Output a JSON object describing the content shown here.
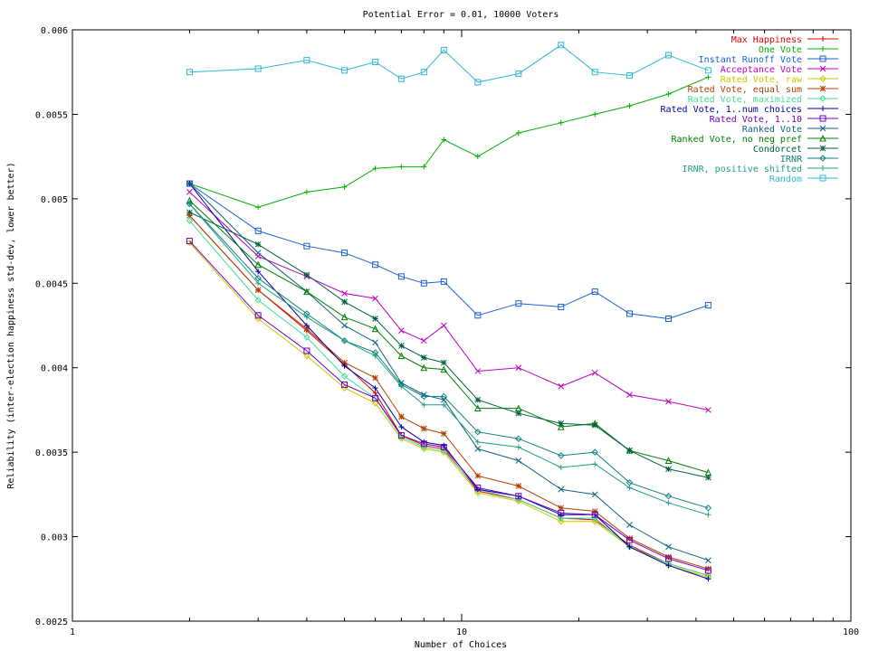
{
  "chart_data": {
    "type": "line",
    "title": "Potential Error = 0.01, 10000 Voters",
    "xlabel": "Number of Choices",
    "ylabel": "Reliability (inter-election happiness std-dev, lower better)",
    "xscale": "log",
    "xlim": [
      1,
      100
    ],
    "ylim": [
      0.0025,
      0.006
    ],
    "xticks": [
      1,
      10,
      100
    ],
    "yticks": [
      "0.0025",
      "0.003",
      "0.0035",
      "0.004",
      "0.0045",
      "0.005",
      "0.0055",
      "0.006"
    ],
    "legend_position": "top-right",
    "grid": false,
    "x": [
      2,
      3,
      4,
      5,
      6,
      7,
      8,
      9,
      11,
      14,
      18,
      22,
      27,
      34,
      43
    ],
    "series": [
      {
        "name": "Max Happiness",
        "color": "#e00000",
        "marker": "plus",
        "values": [
          0.0049,
          0.00446,
          0.00422,
          0.00402,
          0.00385,
          0.0036,
          0.00354,
          0.00352,
          0.00327,
          0.00322,
          0.00311,
          0.0031,
          0.00295,
          0.00284,
          0.00277
        ]
      },
      {
        "name": "One Vote",
        "color": "#00b000",
        "marker": "plus",
        "values": [
          0.00509,
          0.00495,
          0.00504,
          0.00507,
          0.00518,
          0.00519,
          0.00519,
          0.00535,
          0.00525,
          0.00539,
          0.00545,
          0.0055,
          0.00555,
          0.00562,
          0.00572
        ]
      },
      {
        "name": "Instant Runoff Vote",
        "color": "#1a5fd6",
        "marker": "square",
        "values": [
          0.00509,
          0.00481,
          0.00472,
          0.00468,
          0.00461,
          0.00454,
          0.0045,
          0.00451,
          0.00431,
          0.00438,
          0.00436,
          0.00445,
          0.00432,
          0.00429,
          0.00437
        ]
      },
      {
        "name": "Acceptance Vote",
        "color": "#c000c0",
        "marker": "x",
        "values": [
          0.00504,
          0.00466,
          0.00454,
          0.00444,
          0.00441,
          0.00422,
          0.00416,
          0.00425,
          0.00398,
          0.004,
          0.00389,
          0.00397,
          0.00384,
          0.0038,
          0.00375
        ]
      },
      {
        "name": "Rated Vote, raw",
        "color": "#c8c800",
        "marker": "diamond",
        "values": [
          0.00474,
          0.00429,
          0.00407,
          0.00388,
          0.00379,
          0.00358,
          0.00352,
          0.0035,
          0.00326,
          0.00321,
          0.00309,
          0.00309,
          0.00294,
          0.00283,
          0.00276
        ]
      },
      {
        "name": "Rated Vote, equal sum",
        "color": "#b04000",
        "marker": "star",
        "values": [
          0.0049,
          0.00446,
          0.00423,
          0.00403,
          0.00394,
          0.00371,
          0.00364,
          0.00361,
          0.00336,
          0.0033,
          0.00317,
          0.00315,
          0.00299,
          0.00288,
          0.00281
        ]
      },
      {
        "name": "Rated Vote, maximized",
        "color": "#40e090",
        "marker": "diamond",
        "values": [
          0.00487,
          0.0044,
          0.00418,
          0.00395,
          0.00382,
          0.00359,
          0.00353,
          0.00351,
          0.00328,
          0.00322,
          0.00311,
          0.00311,
          0.00294,
          0.00284,
          0.00277
        ]
      },
      {
        "name": "Rated Vote, 1..num choices",
        "color": "#0000a0",
        "marker": "plus",
        "values": [
          0.00509,
          0.00457,
          0.00425,
          0.00401,
          0.00388,
          0.00365,
          0.00356,
          0.00354,
          0.00328,
          0.00324,
          0.00313,
          0.00313,
          0.00294,
          0.00283,
          0.00275
        ]
      },
      {
        "name": "Rated Vote, 1..10",
        "color": "#7000c0",
        "marker": "square",
        "values": [
          0.00475,
          0.00431,
          0.0041,
          0.0039,
          0.00382,
          0.0036,
          0.00355,
          0.00353,
          0.00329,
          0.00324,
          0.00314,
          0.00313,
          0.00298,
          0.00287,
          0.0028
        ]
      },
      {
        "name": "Ranked Vote",
        "color": "#106080",
        "marker": "x",
        "values": [
          0.00509,
          0.00468,
          0.00445,
          0.00425,
          0.00415,
          0.00391,
          0.00384,
          0.00381,
          0.00352,
          0.00345,
          0.00328,
          0.00325,
          0.00307,
          0.00294,
          0.00286
        ]
      },
      {
        "name": "Ranked Vote, no neg pref",
        "color": "#008000",
        "marker": "triangle",
        "values": [
          0.00499,
          0.00461,
          0.00445,
          0.0043,
          0.00423,
          0.00407,
          0.004,
          0.00399,
          0.00376,
          0.00376,
          0.00365,
          0.00367,
          0.00351,
          0.00345,
          0.00338
        ]
      },
      {
        "name": "Condorcet",
        "color": "#006040",
        "marker": "star",
        "values": [
          0.00492,
          0.00473,
          0.00455,
          0.00439,
          0.00429,
          0.00413,
          0.00406,
          0.00403,
          0.00381,
          0.00373,
          0.00367,
          0.00366,
          0.00351,
          0.0034,
          0.00335
        ]
      },
      {
        "name": "IRNR",
        "color": "#108080",
        "marker": "diamond",
        "values": [
          0.00497,
          0.00453,
          0.00432,
          0.00416,
          0.00409,
          0.0039,
          0.00383,
          0.00383,
          0.00362,
          0.00358,
          0.00348,
          0.0035,
          0.00332,
          0.00324,
          0.00317
        ]
      },
      {
        "name": "IRNR, positive shifted",
        "color": "#20a080",
        "marker": "plus",
        "values": [
          0.00497,
          0.0045,
          0.0043,
          0.00416,
          0.00407,
          0.00389,
          0.00378,
          0.00378,
          0.00356,
          0.00353,
          0.00341,
          0.00343,
          0.00329,
          0.0032,
          0.00313
        ]
      },
      {
        "name": "Random",
        "color": "#30b8d0",
        "marker": "square",
        "values": [
          0.00575,
          0.00577,
          0.00582,
          0.00576,
          0.00581,
          0.00571,
          0.00575,
          0.00588,
          0.00569,
          0.00574,
          0.00591,
          0.00575,
          0.00573,
          0.00585,
          0.00576
        ]
      }
    ]
  }
}
